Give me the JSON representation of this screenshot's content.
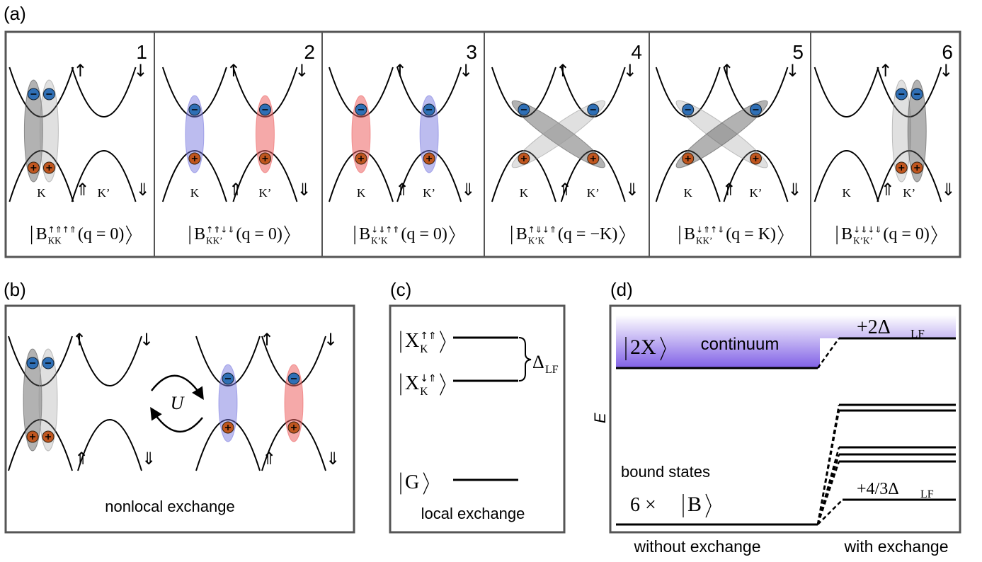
{
  "panel_labels": [
    "(a)",
    "(b)",
    "(c)",
    "(d)"
  ],
  "a": {
    "cells": [
      {
        "number": "1",
        "valleys": [
          "K",
          "K’"
        ],
        "spins": [
          "↑",
          "↓",
          "⇑",
          "⇓"
        ],
        "state": {
          "symbol": "B",
          "sup": "↑⇑↑⇑",
          "sub": "KK",
          "arg": "(q = 0)"
        }
      },
      {
        "number": "2",
        "valleys": [
          "K",
          "K’"
        ],
        "spins": [
          "↑",
          "↓",
          "⇑",
          "⇓"
        ],
        "state": {
          "symbol": "B",
          "sup": "↑⇑↓⇓",
          "sub": "KK’",
          "arg": "(q = 0)"
        }
      },
      {
        "number": "3",
        "valleys": [
          "K",
          "K’"
        ],
        "spins": [
          "↑",
          "↓",
          "⇑",
          "⇓"
        ],
        "state": {
          "symbol": "B",
          "sup": "↓⇓↑⇑",
          "sub": "K’K",
          "arg": "(q = 0)"
        }
      },
      {
        "number": "4",
        "valleys": [
          "K",
          "K’"
        ],
        "spins": [
          "↑",
          "↓",
          "⇑",
          "⇓"
        ],
        "state": {
          "symbol": "B",
          "sup": "↑⇓↓⇑",
          "sub": "K’K",
          "arg": "(q = −K)"
        }
      },
      {
        "number": "5",
        "valleys": [
          "K",
          "K’"
        ],
        "spins": [
          "↑",
          "↓",
          "⇑",
          "⇓"
        ],
        "state": {
          "symbol": "B",
          "sup": "↓⇑↑⇓",
          "sub": "KK’",
          "arg": "(q = K)"
        }
      },
      {
        "number": "6",
        "valleys": [
          "K",
          "K’"
        ],
        "spins": [
          "↑",
          "↓",
          "⇑",
          "⇓"
        ],
        "state": {
          "symbol": "B",
          "sup": "↓⇓↓⇓",
          "sub": "K’K’",
          "arg": "(q = 0)"
        }
      }
    ]
  },
  "b": {
    "left_spins": [
      "↑",
      "↓",
      "⇑",
      "⇓"
    ],
    "right_spins": [
      "↑",
      "↓",
      "⇑",
      "⇓"
    ],
    "coupling": "U",
    "caption": "nonlocal exchange"
  },
  "c": {
    "states": [
      {
        "symbol": "X",
        "sup": "↑⇑",
        "sub": "K"
      },
      {
        "symbol": "X",
        "sup": "↓⇑",
        "sub": "K"
      },
      {
        "symbol": "G"
      }
    ],
    "splitting": {
      "text": "Δ",
      "sub": "LF"
    },
    "caption": "local exchange"
  },
  "d": {
    "axis_label": "E",
    "continuum_state": {
      "symbol": "2X"
    },
    "continuum_label": "continuum",
    "continuum_shift": {
      "text": "+2Δ",
      "sub": "LF"
    },
    "bound_label": "bound states",
    "multiplicity": "6 ×",
    "bound_state": {
      "symbol": "B"
    },
    "bound_shift": {
      "text": "+4/3Δ",
      "sub": "LF"
    },
    "x_labels": [
      "without exchange",
      "with exchange"
    ]
  }
}
